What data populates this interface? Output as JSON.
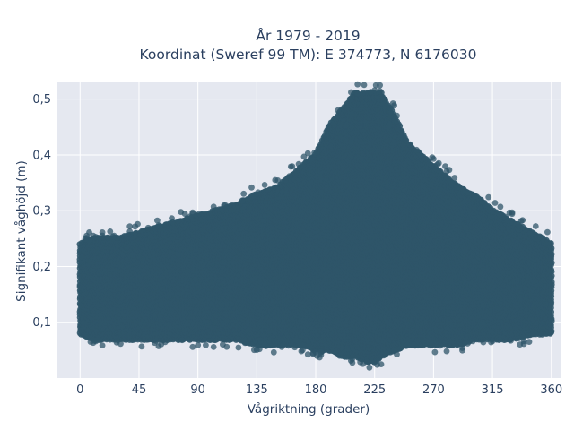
{
  "chart_data": {
    "type": "scatter",
    "title": "År 1979 - 2019",
    "subtitle": "Koordinat (Sweref 99 TM): E 374773, N 6176030",
    "xlabel": "Vågriktning (grader)",
    "ylabel": "Signifikant våghöjd (m)",
    "xlim": [
      -18,
      367
    ],
    "ylim": [
      0.0,
      0.53
    ],
    "xticks": [
      0,
      45,
      90,
      135,
      180,
      225,
      270,
      315,
      360
    ],
    "xtick_labels": [
      "0",
      "45",
      "90",
      "135",
      "180",
      "225",
      "270",
      "315",
      "360"
    ],
    "yticks": [
      0.1,
      0.2,
      0.3,
      0.4,
      0.5
    ],
    "ytick_labels": [
      "0,1",
      "0,2",
      "0,3",
      "0,4",
      "0,5"
    ],
    "grid": true,
    "legend": "none",
    "marker_color": "#2f5569",
    "background": "#e5e8f0",
    "grid_color": "#ffffff",
    "text_color": "#2a3f5f",
    "envelope": {
      "x_deg": [
        0,
        10,
        20,
        30,
        45,
        60,
        75,
        90,
        105,
        120,
        135,
        150,
        160,
        170,
        180,
        190,
        200,
        210,
        220,
        225,
        230,
        240,
        250,
        260,
        270,
        280,
        290,
        300,
        315,
        330,
        345,
        360
      ],
      "y_min_m": [
        0.08,
        0.07,
        0.07,
        0.07,
        0.07,
        0.07,
        0.07,
        0.07,
        0.07,
        0.07,
        0.06,
        0.06,
        0.06,
        0.06,
        0.05,
        0.05,
        0.04,
        0.04,
        0.03,
        0.03,
        0.04,
        0.05,
        0.06,
        0.06,
        0.06,
        0.06,
        0.06,
        0.07,
        0.07,
        0.07,
        0.08,
        0.08
      ],
      "y_max_m": [
        0.24,
        0.25,
        0.25,
        0.25,
        0.26,
        0.27,
        0.28,
        0.29,
        0.3,
        0.31,
        0.33,
        0.34,
        0.36,
        0.38,
        0.4,
        0.45,
        0.48,
        0.51,
        0.51,
        0.51,
        0.51,
        0.47,
        0.42,
        0.4,
        0.38,
        0.36,
        0.34,
        0.33,
        0.3,
        0.28,
        0.26,
        0.24
      ]
    }
  }
}
